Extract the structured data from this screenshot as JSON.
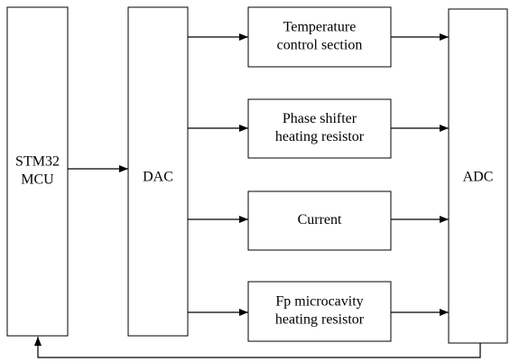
{
  "nodes": [
    {
      "lines": [
        "STM32",
        "MCU"
      ]
    },
    {
      "lines": [
        "DAC"
      ]
    },
    {
      "lines": [
        "Temperature",
        "control section"
      ]
    },
    {
      "lines": [
        "Phase shifter",
        "heating resistor"
      ]
    },
    {
      "lines": [
        "Current"
      ]
    },
    {
      "lines": [
        "Fp microcavity",
        "heating resistor"
      ]
    },
    {
      "lines": [
        "ADC"
      ]
    }
  ]
}
